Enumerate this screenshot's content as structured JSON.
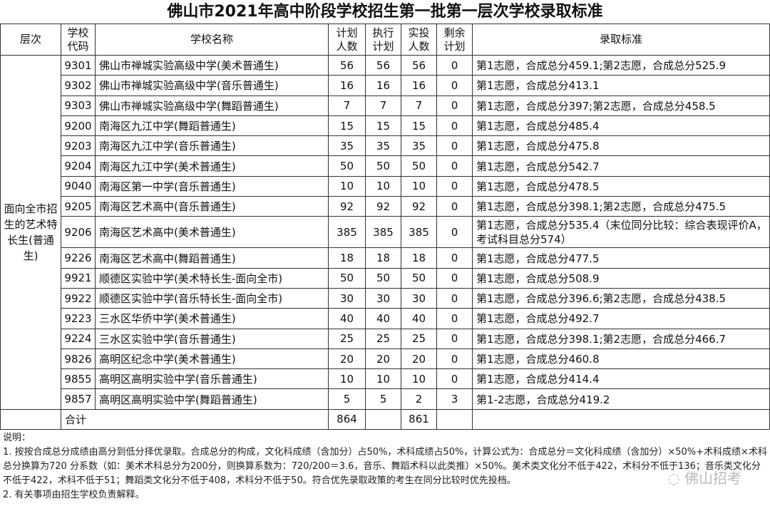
{
  "title": "佛山市2021年高中阶段学校招生第一批第一层次学校录取标准",
  "headers": [
    "层次",
    "学校代码",
    "学校名称",
    "计划人数",
    "执行计划",
    "实投人数",
    "剩余计划",
    "录取标准"
  ],
  "category": "面向全市招生的艺术特长生(普通生)",
  "rows": [
    {
      "code": "9301",
      "name": "佛山市禅城实验高级中学(美术普通生)",
      "plan": "56",
      "exec": "56",
      "actual": "56",
      "remain": "0",
      "std": "第1志愿，合成总分459.1;第2志愿，合成总分525.9"
    },
    {
      "code": "9302",
      "name": "佛山市禅城实验高级中学(音乐普通生)",
      "plan": "16",
      "exec": "16",
      "actual": "16",
      "remain": "0",
      "std": "第1志愿，合成总分413.1"
    },
    {
      "code": "9303",
      "name": "佛山市禅城实验高级中学(舞蹈普通生)",
      "plan": "7",
      "exec": "7",
      "actual": "7",
      "remain": "0",
      "std": "第1志愿，合成总分397;第2志愿，合成总分458.5"
    },
    {
      "code": "9200",
      "name": "南海区九江中学(舞蹈普通生)",
      "plan": "15",
      "exec": "15",
      "actual": "15",
      "remain": "0",
      "std": "第1志愿，合成总分485.4"
    },
    {
      "code": "9203",
      "name": "南海区九江中学(音乐普通生)",
      "plan": "35",
      "exec": "35",
      "actual": "35",
      "remain": "0",
      "std": "第1志愿，合成总分475.8"
    },
    {
      "code": "9204",
      "name": "南海区九江中学(美术普通生)",
      "plan": "50",
      "exec": "50",
      "actual": "50",
      "remain": "0",
      "std": "第1志愿，合成总分542.7"
    },
    {
      "code": "9040",
      "name": "南海区第一中学(音乐普通生)",
      "plan": "10",
      "exec": "10",
      "actual": "10",
      "remain": "0",
      "std": "第1志愿，合成总分478.5"
    },
    {
      "code": "9205",
      "name": "南海区艺术高中(音乐普通生)",
      "plan": "92",
      "exec": "92",
      "actual": "92",
      "remain": "0",
      "std": "第1志愿，合成总分398.1;第2志愿，合成总分475.5"
    },
    {
      "code": "9206",
      "name": "南海区艺术高中(美术普通生)",
      "plan": "385",
      "exec": "385",
      "actual": "385",
      "remain": "0",
      "std": "第1志愿，合成总分535.4（末位同分比较：综合表现评价A，考试科目总分574）"
    },
    {
      "code": "9226",
      "name": "南海区艺术高中(舞蹈普通生)",
      "plan": "18",
      "exec": "18",
      "actual": "18",
      "remain": "0",
      "std": "第1志愿，合成总分477.5"
    },
    {
      "code": "9921",
      "name": "顺德区实验中学(美术特长生-面向全市)",
      "plan": "50",
      "exec": "50",
      "actual": "50",
      "remain": "0",
      "std": "第1志愿，合成总分508.9"
    },
    {
      "code": "9922",
      "name": "顺德区实验中学(音乐特长生-面向全市)",
      "plan": "30",
      "exec": "30",
      "actual": "30",
      "remain": "0",
      "std": "第1志愿，合成总分396.6;第2志愿，合成总分438.5"
    },
    {
      "code": "9223",
      "name": "三水区华侨中学(美术普通生)",
      "plan": "40",
      "exec": "40",
      "actual": "40",
      "remain": "0",
      "std": "第1志愿，合成总分492.7"
    },
    {
      "code": "9224",
      "name": "三水区实验中学(音乐普通生)",
      "plan": "25",
      "exec": "25",
      "actual": "25",
      "remain": "0",
      "std": "第1志愿，合成总分398.1;第2志愿，合成总分466.7"
    },
    {
      "code": "9826",
      "name": "高明区纪念中学(美术普通生)",
      "plan": "20",
      "exec": "20",
      "actual": "20",
      "remain": "0",
      "std": "第1志愿，合成总分460.8"
    },
    {
      "code": "9855",
      "name": "高明区高明实验中学(音乐普通生)",
      "plan": "10",
      "exec": "10",
      "actual": "10",
      "remain": "0",
      "std": "第1志愿，合成总分414.4"
    },
    {
      "code": "9857",
      "name": "高明区高明实验中学(舞蹈普通生)",
      "plan": "5",
      "exec": "5",
      "actual": "2",
      "remain": "3",
      "std": "第1-2志愿，合成总分419.2"
    }
  ],
  "total": {
    "label": "合计",
    "plan": "864",
    "actual": "861"
  },
  "notes": [
    "说明：",
    "1. 按按合成总分成绩由高分到低分择优录取。合成总分的构成，文化科成绩（含加分）占50%，术科成绩占50%，计算公式为：合成总分＝文化科成绩（含加分）×50%+术科成绩×术科总分换算为720 分系数（如：美术术科总分为200分，则换算系数为：720/200＝3.6，音乐、舞蹈术科以此类推）×50%。美术类文化分不低于422，术科分不低于136；音乐类文化分不低于422，术科不低于51；舞蹈类文化分不低于408，术科分不低于50。符合优先录取政策的考生在同分比较时优先投档。",
    "2. 有关事项由招生学校负责解释。"
  ],
  "watermark": "佛山招考"
}
